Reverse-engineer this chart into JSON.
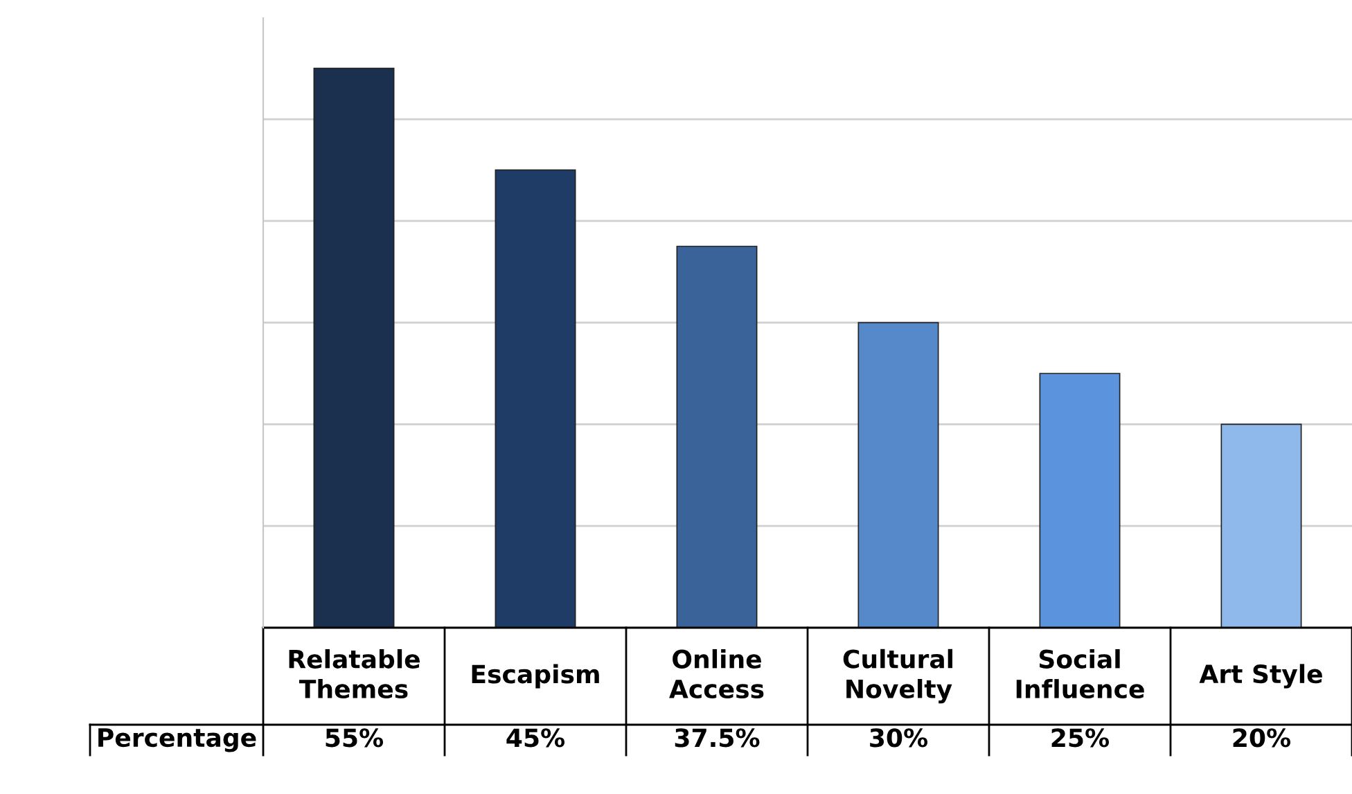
{
  "chart_data": {
    "type": "bar",
    "categories": [
      "Relatable\nThemes",
      "Escapism",
      "Online\nAccess",
      "Cultural\nNovelty",
      "Social\nInfluence",
      "Art Style"
    ],
    "series": [
      {
        "name": "Percentage",
        "values": [
          55,
          45,
          37.5,
          30,
          25,
          20
        ],
        "value_labels": [
          "55%",
          "45%",
          "37.5%",
          "30%",
          "25%",
          "20%"
        ],
        "colors": [
          "#1b2f4f",
          "#1f3c66",
          "#3a6399",
          "#5689c9",
          "#5b94dc",
          "#8fb9ea"
        ]
      }
    ],
    "grid": "y",
    "legend": false
  }
}
